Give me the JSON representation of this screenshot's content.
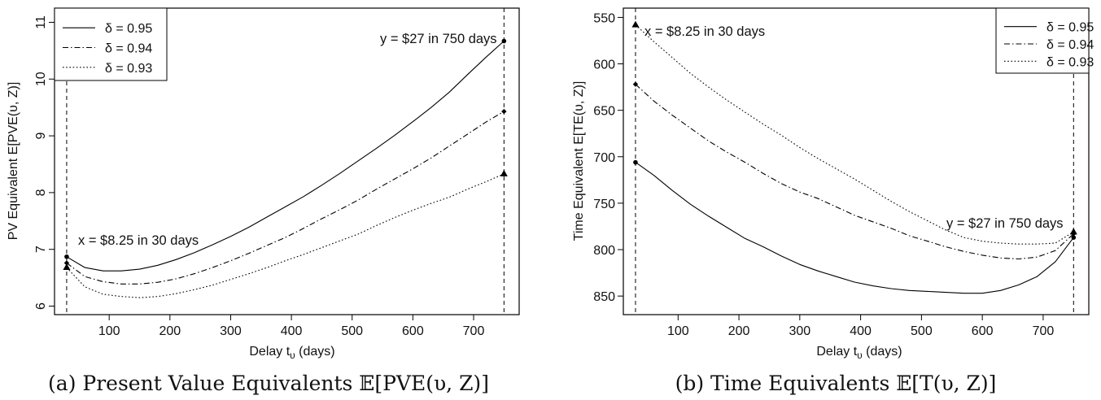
{
  "chart_data": [
    {
      "type": "line",
      "caption": "(a) Present Value Equivalents 𝔼[PVE(υ, Z)]",
      "xlabel": "Delay t",
      "xlabel_sub": "υ",
      "xlabel_unit": "(days)",
      "ylabel": "PV Equivalent E[PVE(υ, Z)]",
      "xlim": [
        10,
        775
      ],
      "ylim": [
        5.85,
        11.25
      ],
      "y_reversed": false,
      "x_ticks": [
        100,
        200,
        300,
        400,
        500,
        600,
        700
      ],
      "y_ticks": [
        6,
        7,
        8,
        9,
        10,
        11
      ],
      "vlines": [
        30,
        750
      ],
      "legend_position": "top-left",
      "series": [
        {
          "name": "δ = 0.95",
          "dash": "solid",
          "x": [
            30,
            60,
            90,
            120,
            150,
            180,
            210,
            240,
            270,
            300,
            330,
            360,
            390,
            420,
            450,
            480,
            510,
            540,
            570,
            600,
            630,
            660,
            690,
            720,
            750
          ],
          "y": [
            6.87,
            6.68,
            6.62,
            6.62,
            6.65,
            6.72,
            6.82,
            6.94,
            7.08,
            7.23,
            7.39,
            7.57,
            7.75,
            7.93,
            8.13,
            8.34,
            8.56,
            8.78,
            9.01,
            9.25,
            9.5,
            9.77,
            10.08,
            10.38,
            10.67
          ]
        },
        {
          "name": "δ = 0.94",
          "dash": "dashdot",
          "x": [
            30,
            60,
            90,
            120,
            150,
            180,
            210,
            240,
            270,
            300,
            330,
            360,
            390,
            420,
            450,
            480,
            510,
            540,
            570,
            600,
            630,
            660,
            690,
            720,
            750
          ],
          "y": [
            6.76,
            6.52,
            6.43,
            6.39,
            6.39,
            6.42,
            6.48,
            6.57,
            6.68,
            6.8,
            6.93,
            7.07,
            7.21,
            7.37,
            7.54,
            7.7,
            7.87,
            8.06,
            8.24,
            8.42,
            8.61,
            8.82,
            9.03,
            9.24,
            9.43
          ]
        },
        {
          "name": "δ = 0.93",
          "dash": "dotted",
          "x": [
            30,
            60,
            90,
            120,
            150,
            180,
            210,
            240,
            270,
            300,
            330,
            360,
            390,
            420,
            450,
            480,
            510,
            540,
            570,
            600,
            630,
            660,
            690,
            720,
            750
          ],
          "y": [
            6.68,
            6.34,
            6.21,
            6.17,
            6.15,
            6.17,
            6.22,
            6.29,
            6.37,
            6.47,
            6.57,
            6.68,
            6.8,
            6.91,
            7.03,
            7.15,
            7.27,
            7.42,
            7.56,
            7.69,
            7.81,
            7.92,
            8.06,
            8.19,
            8.33
          ]
        }
      ],
      "annotations": [
        {
          "text": "y = $27 in 750 days",
          "x": 750,
          "y": 10.67
        },
        {
          "text": "x = $8.25 in 30 days",
          "x": 30,
          "y": 6.87
        }
      ]
    },
    {
      "type": "line",
      "caption": "(b) Time Equivalents 𝔼[T(υ, Z)]",
      "xlabel": "Delay t",
      "xlabel_sub": "υ",
      "xlabel_unit": "(days)",
      "ylabel": "Time Equivalent E[TE(υ, Z)]",
      "xlim": [
        10,
        775
      ],
      "ylim": [
        870,
        540
      ],
      "y_reversed": true,
      "x_ticks": [
        100,
        200,
        300,
        400,
        500,
        600,
        700
      ],
      "y_ticks": [
        550,
        600,
        650,
        700,
        750,
        800,
        850
      ],
      "vlines": [
        30,
        750
      ],
      "legend_position": "top-right",
      "series": [
        {
          "name": "δ = 0.95",
          "dash": "solid",
          "x": [
            30,
            60,
            90,
            120,
            150,
            180,
            210,
            240,
            270,
            300,
            330,
            360,
            390,
            420,
            450,
            480,
            510,
            540,
            570,
            600,
            630,
            660,
            690,
            720,
            750
          ],
          "y": [
            706,
            720,
            736,
            751,
            764,
            776,
            788,
            797,
            807,
            816,
            823,
            829,
            835,
            839,
            842,
            844,
            845,
            846,
            847,
            847,
            844,
            838,
            829,
            813,
            787
          ]
        },
        {
          "name": "δ = 0.94",
          "dash": "dashdot",
          "x": [
            30,
            60,
            90,
            120,
            150,
            180,
            210,
            240,
            270,
            300,
            330,
            360,
            390,
            420,
            450,
            480,
            510,
            540,
            570,
            600,
            630,
            660,
            690,
            720,
            750
          ],
          "y": [
            622,
            640,
            655,
            669,
            683,
            695,
            706,
            718,
            729,
            738,
            745,
            754,
            763,
            770,
            777,
            785,
            791,
            797,
            802,
            806,
            809,
            810,
            808,
            801,
            783
          ]
        },
        {
          "name": "δ = 0.93",
          "dash": "dotted",
          "x": [
            30,
            60,
            90,
            120,
            150,
            180,
            210,
            240,
            270,
            300,
            330,
            360,
            390,
            420,
            450,
            480,
            510,
            540,
            570,
            600,
            630,
            660,
            690,
            720,
            750
          ],
          "y": [
            558,
            576,
            593,
            610,
            625,
            639,
            652,
            665,
            677,
            690,
            702,
            713,
            724,
            736,
            748,
            759,
            769,
            779,
            787,
            791,
            793,
            794,
            794,
            793,
            781
          ]
        }
      ],
      "annotations": [
        {
          "text": "x = $8.25 in 30 days",
          "x": 30,
          "y": 558
        },
        {
          "text": "y = $27 in 750 days",
          "x": 750,
          "y": 783
        }
      ]
    }
  ]
}
